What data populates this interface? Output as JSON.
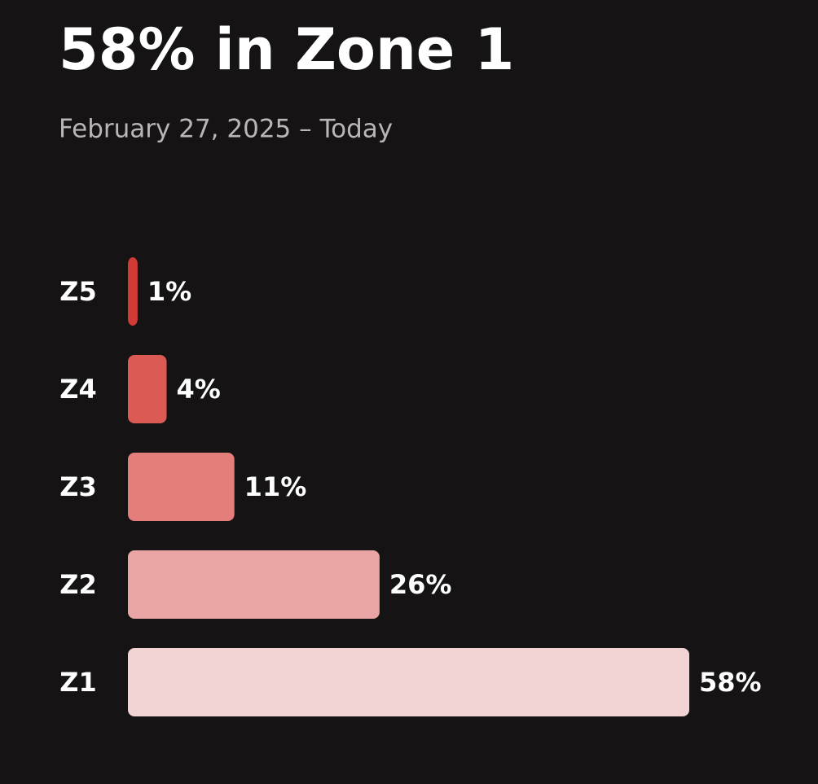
{
  "chart_data": {
    "type": "bar",
    "orientation": "horizontal",
    "title": "58% in Zone 1",
    "subtitle": "February 27, 2025 – Today",
    "categories": [
      "Z5",
      "Z4",
      "Z3",
      "Z2",
      "Z1"
    ],
    "values": [
      1,
      4,
      11,
      26,
      58
    ],
    "value_labels": [
      "1%",
      "4%",
      "11%",
      "26%",
      "58%"
    ],
    "colors": [
      "#d13a35",
      "#db5a53",
      "#e47e7b",
      "#e8a5a4",
      "#f2d3d4"
    ]
  }
}
